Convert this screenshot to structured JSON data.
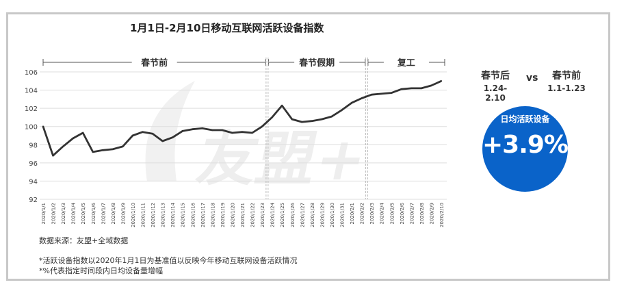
{
  "chart_data": {
    "type": "line",
    "title": "1月1日-2月10日移动互联网活跃设备指数",
    "ylim": [
      92,
      106
    ],
    "yticks": [
      92,
      94,
      96,
      98,
      100,
      102,
      104,
      106
    ],
    "grid": true,
    "categories": [
      "2020/1/1",
      "2020/1/2",
      "2020/1/3",
      "2020/1/4",
      "2020/1/5",
      "2020/1/6",
      "2020/1/7",
      "2020/1/8",
      "2020/1/9",
      "2020/1/10",
      "2020/1/11",
      "2020/1/12",
      "2020/1/13",
      "2020/1/14",
      "2020/1/15",
      "2020/1/16",
      "2020/1/17",
      "2020/1/18",
      "2020/1/19",
      "2020/1/20",
      "2020/1/21",
      "2020/1/22",
      "2020/1/23",
      "2020/1/24",
      "2020/1/25",
      "2020/1/26",
      "2020/1/27",
      "2020/1/28",
      "2020/1/29",
      "2020/1/30",
      "2020/1/31",
      "2020/2/1",
      "2020/2/2",
      "2020/2/3",
      "2020/2/4",
      "2020/2/5",
      "2020/2/6",
      "2020/2/7",
      "2020/2/8",
      "2020/2/9",
      "2020/2/10"
    ],
    "series": [
      {
        "color": "#333333",
        "values": [
          100.0,
          96.8,
          97.8,
          98.7,
          99.3,
          97.2,
          97.4,
          97.5,
          97.8,
          99.0,
          99.4,
          99.2,
          98.4,
          98.8,
          99.5,
          99.7,
          99.8,
          99.6,
          99.6,
          99.3,
          99.4,
          99.3,
          100.0,
          101.0,
          102.3,
          100.8,
          100.5,
          100.6,
          100.8,
          101.1,
          101.8,
          102.6,
          103.1,
          103.5,
          103.6,
          103.7,
          104.1,
          104.2,
          104.2,
          104.5,
          105.0
        ]
      }
    ],
    "periods": [
      {
        "label": "春节前",
        "start": 0,
        "end": 22
      },
      {
        "label": "春节假期",
        "start": 23,
        "end": 32
      },
      {
        "label": "复工",
        "start": 33,
        "end": 40
      }
    ]
  },
  "source": "数据来源：友盟+全域数据",
  "notes": [
    "*活跃设备指数以2020年1月1日为基准值以反映今年移动互联网设备活跃情况",
    "*%代表指定时间段内日均设备量增幅"
  ],
  "compare": {
    "left_title": "春节后",
    "left_range": "1.24-2.10",
    "vs": "vs",
    "right_title": "春节前",
    "right_range": "1.1-1.23"
  },
  "circle": {
    "label": "日均活跃设备",
    "value": "+3.9%"
  },
  "watermark": "友盟+",
  "colors": {
    "line": "#333333",
    "circle": "#0a63c9",
    "grid": "#dddddd"
  }
}
